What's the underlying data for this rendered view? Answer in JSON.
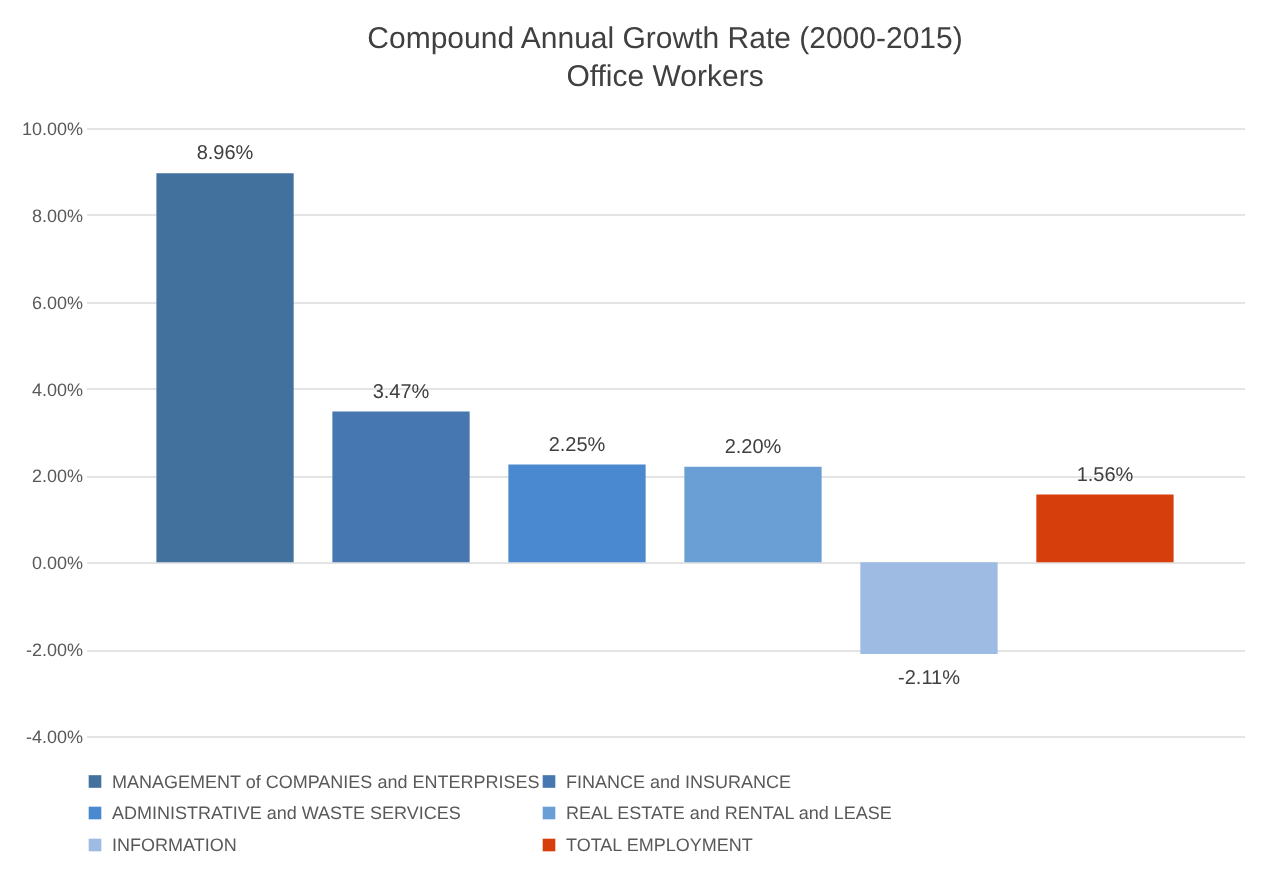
{
  "chart_data": {
    "type": "bar",
    "title": "Compound Annual Growth Rate (2000-2015)",
    "subtitle": "Office Workers",
    "categories": [
      null,
      null,
      null,
      null,
      null,
      null
    ],
    "series": [
      {
        "name": "MANAGEMENT of COMPANIES and ENTERPRISES",
        "color": "#41719c",
        "values": [
          8.96,
          null,
          null,
          null,
          null,
          null
        ],
        "value_labels": [
          "8.96%",
          null,
          null,
          null,
          null,
          null
        ]
      },
      {
        "name": "FINANCE and INSURANCE",
        "color": "#4677b0",
        "values": [
          null,
          3.47,
          null,
          null,
          null,
          null
        ],
        "value_labels": [
          null,
          "3.47%",
          null,
          null,
          null,
          null
        ]
      },
      {
        "name": "ADMINISTRATIVE and WASTE SERVICES",
        "color": "#4a88cf",
        "values": [
          null,
          null,
          2.25,
          null,
          null,
          null
        ],
        "value_labels": [
          null,
          null,
          "2.25%",
          null,
          null,
          null
        ]
      },
      {
        "name": "REAL ESTATE and RENTAL and LEASE",
        "color": "#6a9fd6",
        "values": [
          null,
          null,
          null,
          2.2,
          null,
          null
        ],
        "value_labels": [
          null,
          null,
          null,
          "2.20%",
          null,
          null
        ]
      },
      {
        "name": "INFORMATION",
        "color": "#9dbbe3",
        "values": [
          null,
          null,
          null,
          null,
          -2.11,
          null
        ],
        "value_labels": [
          null,
          null,
          null,
          null,
          "-2.11%",
          null
        ]
      },
      {
        "name": "TOTAL EMPLOYMENT",
        "color": "#d63e0c",
        "values": [
          null,
          null,
          null,
          null,
          null,
          1.56
        ],
        "value_labels": [
          null,
          null,
          null,
          null,
          null,
          "1.56%"
        ]
      }
    ],
    "ylim": [
      -4,
      10
    ],
    "yticks": [
      {
        "value": -4,
        "label": "-4.00%"
      },
      {
        "value": -2,
        "label": "-2.00%"
      },
      {
        "value": 0,
        "label": "0.00%"
      },
      {
        "value": 2,
        "label": "2.00%"
      },
      {
        "value": 4,
        "label": "4.00%"
      },
      {
        "value": 6,
        "label": "6.00%"
      },
      {
        "value": 8,
        "label": "8.00%"
      },
      {
        "value": 10,
        "label": "10.00%"
      }
    ],
    "grid": "y",
    "legend": "bottom"
  }
}
